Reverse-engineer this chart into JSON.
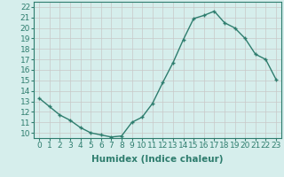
{
  "x": [
    0,
    1,
    2,
    3,
    4,
    5,
    6,
    7,
    8,
    9,
    10,
    11,
    12,
    13,
    14,
    15,
    16,
    17,
    18,
    19,
    20,
    21,
    22,
    23
  ],
  "y": [
    13.3,
    12.5,
    11.7,
    11.2,
    10.5,
    10.0,
    9.8,
    9.6,
    9.7,
    11.0,
    11.5,
    12.8,
    14.8,
    16.7,
    18.9,
    20.9,
    21.2,
    21.6,
    20.5,
    20.0,
    19.0,
    17.5,
    17.0,
    15.1
  ],
  "xlabel": "Humidex (Indice chaleur)",
  "xlim": [
    -0.5,
    23.5
  ],
  "ylim": [
    9.5,
    22.5
  ],
  "xticks": [
    0,
    1,
    2,
    3,
    4,
    5,
    6,
    7,
    8,
    9,
    10,
    11,
    12,
    13,
    14,
    15,
    16,
    17,
    18,
    19,
    20,
    21,
    22,
    23
  ],
  "yticks": [
    10,
    11,
    12,
    13,
    14,
    15,
    16,
    17,
    18,
    19,
    20,
    21,
    22
  ],
  "line_color": "#2e7d6e",
  "marker_color": "#2e7d6e",
  "bg_color": "#d6eeec",
  "grid_color": "#c8c8c8",
  "xlabel_fontsize": 7.5,
  "tick_fontsize": 6.5,
  "line_width": 1.0,
  "marker_size": 3.5
}
